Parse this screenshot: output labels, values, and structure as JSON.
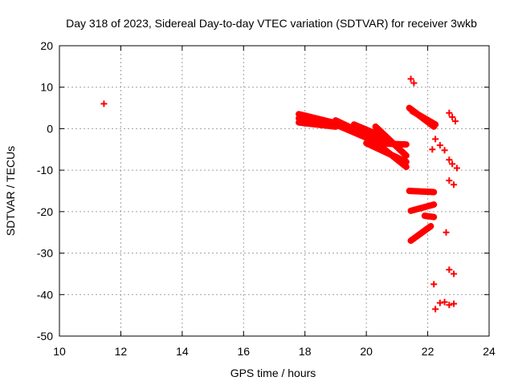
{
  "chart_data": {
    "type": "scatter",
    "title": "Day 318 of 2023, Sidereal Day-to-day VTEC variation (SDTVAR) for receiver 3wkb",
    "xlabel": "GPS time / hours",
    "ylabel": "SDTVAR / TECUs",
    "xlim": [
      10,
      24
    ],
    "ylim": [
      -50,
      20
    ],
    "x_ticks": [
      10,
      12,
      14,
      16,
      18,
      20,
      22,
      24
    ],
    "y_ticks": [
      -50,
      -40,
      -30,
      -20,
      -10,
      0,
      10,
      20
    ],
    "grid": true,
    "marker": "+",
    "series_color": "#ff0000",
    "series": [
      {
        "name": "SDTVAR",
        "points": [
          [
            11.45,
            6.0
          ],
          [
            21.45,
            12.0
          ],
          [
            21.55,
            11.0
          ],
          [
            22.7,
            3.8
          ],
          [
            22.8,
            2.8
          ],
          [
            22.9,
            1.8
          ],
          [
            22.25,
            -2.5
          ],
          [
            22.4,
            -4.0
          ],
          [
            22.55,
            -5.2
          ],
          [
            22.15,
            -5.0
          ],
          [
            22.7,
            -7.5
          ],
          [
            22.8,
            -8.5
          ],
          [
            22.95,
            -9.5
          ],
          [
            22.7,
            -12.5
          ],
          [
            22.85,
            -13.5
          ],
          [
            22.6,
            -25.0
          ],
          [
            22.7,
            -34.0
          ],
          [
            22.85,
            -35.0
          ],
          [
            22.2,
            -37.5
          ],
          [
            22.25,
            -43.5
          ],
          [
            22.4,
            -42.0
          ],
          [
            22.55,
            -41.8
          ],
          [
            22.7,
            -42.5
          ],
          [
            22.85,
            -42.2
          ]
        ],
        "segments": [
          [
            [
              17.8,
              3.5
            ],
            [
              18.9,
              1.5
            ]
          ],
          [
            [
              17.8,
              1.5
            ],
            [
              19.0,
              0.5
            ]
          ],
          [
            [
              17.8,
              2.5
            ],
            [
              18.7,
              1.0
            ]
          ],
          [
            [
              19.0,
              2.0
            ],
            [
              20.0,
              -1.5
            ]
          ],
          [
            [
              19.0,
              1.0
            ],
            [
              20.2,
              -2.8
            ]
          ],
          [
            [
              20.0,
              -1.5
            ],
            [
              21.3,
              -9.2
            ]
          ],
          [
            [
              20.0,
              -3.5
            ],
            [
              21.3,
              -8.0
            ]
          ],
          [
            [
              19.8,
              -1.0
            ],
            [
              20.8,
              -3.5
            ]
          ],
          [
            [
              20.3,
              0.5
            ],
            [
              21.3,
              -6.5
            ]
          ],
          [
            [
              19.6,
              1.0
            ],
            [
              20.4,
              -1.5
            ]
          ],
          [
            [
              20.3,
              -3.5
            ],
            [
              21.3,
              -3.8
            ]
          ],
          [
            [
              21.4,
              5.0
            ],
            [
              22.2,
              0.5
            ]
          ],
          [
            [
              21.5,
              4.2
            ],
            [
              22.25,
              1.0
            ]
          ],
          [
            [
              21.4,
              -15.0
            ],
            [
              22.2,
              -15.3
            ]
          ],
          [
            [
              21.45,
              -19.8
            ],
            [
              22.2,
              -18.3
            ]
          ],
          [
            [
              21.9,
              -21.0
            ],
            [
              22.2,
              -21.3
            ]
          ],
          [
            [
              21.45,
              -27.0
            ],
            [
              22.1,
              -23.5
            ]
          ]
        ]
      }
    ]
  }
}
